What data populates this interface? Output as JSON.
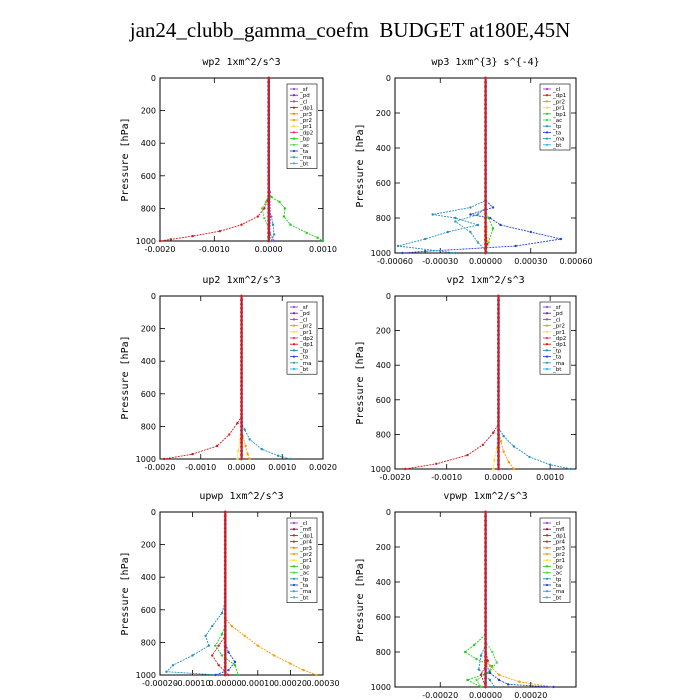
{
  "figure": {
    "title": "jan24_clubb_gamma_coefm  BUDGET at180E,45N"
  },
  "colors": {
    "sf": "#8c4fd0",
    "pd": "#7a1fa0",
    "cl": "#a040d8",
    "dp1": "#d01818",
    "dp2": "#ee3366",
    "pr2": "#ff9900",
    "pr3": "#e08a00",
    "pr1": "#ffdd33",
    "pr4": "#cc2a2a",
    "mfl": "#9a0a3a",
    "bp": "#22cc22",
    "bp1": "#22cc22",
    "ac": "#44dd44",
    "tp": "#2090c0",
    "ta": "#2244dd",
    "ma": "#3aa0a0",
    "bt": "#22bbee",
    "frame": "#000000",
    "legend_box": "#ffffff"
  },
  "chart_data": [
    {
      "id": "wp2",
      "type": "line",
      "title": "wp2  1xm^2/s^3",
      "ylabel": "Pressure [hPa]",
      "ylim": [
        1000,
        0
      ],
      "xlim": [
        -0.002,
        0.001
      ],
      "xticks": [
        -0.002,
        -0.001,
        0.0,
        0.001
      ],
      "xtick_labels": [
        "-0.0020",
        "-0.0010",
        "0.0000",
        "0.0010"
      ],
      "yticks": [
        0,
        200,
        400,
        600,
        800,
        1000
      ],
      "ytick_labels": [
        "0",
        "200",
        "400",
        "600",
        "800",
        "1000"
      ],
      "legend": [
        "_sf",
        "_pd",
        "_cl",
        "_dp1",
        "_pr3",
        "_pr2",
        "_pr1",
        "_dp2",
        "_bp",
        "_ac",
        "_ta",
        "_ma",
        "_bt"
      ],
      "series": [
        {
          "key": "dp1",
          "x": [
            0,
            0,
            -2e-05,
            -8e-05,
            -0.0002,
            -0.0005,
            -0.0009,
            -0.0014,
            -0.0018,
            -0.002
          ],
          "y": [
            0,
            700,
            750,
            800,
            850,
            900,
            940,
            970,
            990,
            1000
          ]
        },
        {
          "key": "bp",
          "x": [
            0,
            0,
            5e-05,
            0.0002,
            0.0003,
            0.00028,
            0.0004,
            0.0007,
            0.0009,
            0.001
          ],
          "y": [
            0,
            700,
            730,
            760,
            800,
            850,
            900,
            950,
            980,
            1000
          ]
        },
        {
          "key": "ac",
          "x": [
            0,
            0,
            -5e-05,
            -0.00012,
            -8e-05,
            0.0,
            5e-05
          ],
          "y": [
            0,
            720,
            760,
            800,
            860,
            920,
            1000
          ]
        },
        {
          "key": "tp",
          "x": [
            0,
            0,
            5e-05,
            8e-05,
            0.0001,
            5e-05
          ],
          "y": [
            0,
            800,
            850,
            900,
            960,
            1000
          ]
        },
        {
          "key": "cl",
          "x": [
            0,
            0,
            2e-05,
            3e-05,
            2e-05,
            0.0001
          ],
          "y": [
            0,
            500,
            700,
            850,
            950,
            1000
          ]
        },
        {
          "key": "pd",
          "x": [
            0,
            0,
            0,
            0
          ],
          "y": [
            0,
            400,
            800,
            1000
          ]
        }
      ]
    },
    {
      "id": "wp3",
      "type": "line",
      "title": "wp3  1xm^{3} s^{-4}",
      "ylabel": "Pressure [hPa]",
      "ylim": [
        1000,
        0
      ],
      "xlim": [
        -0.0006,
        0.0006
      ],
      "xticks": [
        -0.0006,
        -0.0003,
        0.0,
        0.0003,
        0.0006
      ],
      "xtick_labels": [
        "-0.00060",
        "-0.00030",
        "0.00000",
        "0.00030",
        "0.00060"
      ],
      "yticks": [
        0,
        200,
        400,
        600,
        800,
        1000
      ],
      "ytick_labels": [
        "0",
        "200",
        "400",
        "600",
        "800",
        "1000"
      ],
      "legend": [
        "_cl",
        "_dp1",
        "_pr2",
        "_pr1",
        "_bp1",
        "_ac",
        "_tp",
        "_ta",
        "_ma",
        "_bt"
      ],
      "series": [
        {
          "key": "ta",
          "x": [
            0,
            0,
            5e-05,
            -0.0001,
            3e-05,
            0.0001,
            0.0003,
            0.0005,
            0.0002,
            -0.0004,
            -0.00055
          ],
          "y": [
            0,
            700,
            740,
            780,
            800,
            840,
            880,
            920,
            960,
            990,
            1000
          ]
        },
        {
          "key": "tp",
          "x": [
            0,
            0,
            -0.0001,
            -0.00035,
            -0.0002,
            -5e-05,
            -0.00025,
            -0.0004,
            -0.00058,
            -0.0002
          ],
          "y": [
            0,
            700,
            740,
            780,
            800,
            840,
            880,
            920,
            960,
            1000
          ]
        },
        {
          "key": "ma",
          "x": [
            0,
            0,
            -5e-05,
            -0.0002,
            -0.0001,
            -5e-05,
            2e-05
          ],
          "y": [
            0,
            740,
            780,
            820,
            880,
            940,
            1000
          ]
        },
        {
          "key": "bp1",
          "x": [
            0,
            0,
            2e-05,
            5e-05,
            2e-05,
            0.0
          ],
          "y": [
            0,
            760,
            800,
            860,
            940,
            1000
          ]
        },
        {
          "key": "pr1",
          "x": [
            0,
            0,
            1e-05,
            2e-05,
            0.0
          ],
          "y": [
            0,
            780,
            850,
            930,
            1000
          ]
        },
        {
          "key": "dp1",
          "x": [
            0,
            0,
            0,
            1e-05,
            0
          ],
          "y": [
            0,
            400,
            800,
            950,
            1000
          ]
        }
      ]
    },
    {
      "id": "up2",
      "type": "line",
      "title": "up2  1xm^2/s^3",
      "ylabel": "Pressure [hPa]",
      "ylim": [
        1000,
        0
      ],
      "xlim": [
        -0.002,
        0.002
      ],
      "xticks": [
        -0.002,
        -0.001,
        0.0,
        0.001,
        0.002
      ],
      "xtick_labels": [
        "-0.0020",
        "-0.0010",
        "0.0000",
        "0.0010",
        "0.0020"
      ],
      "yticks": [
        0,
        200,
        400,
        600,
        800,
        1000
      ],
      "ytick_labels": [
        "0",
        "200",
        "400",
        "600",
        "800",
        "1000"
      ],
      "legend": [
        "_sf",
        "_pd",
        "_cl",
        "_pr2",
        "_pr1",
        "_dp2",
        "_dp1",
        "_tp",
        "_ta",
        "_ma",
        "_bt"
      ],
      "series": [
        {
          "key": "dp1",
          "x": [
            0,
            0,
            -0.0001,
            -0.0003,
            -0.0006,
            -0.0012,
            -0.0019
          ],
          "y": [
            0,
            740,
            780,
            850,
            920,
            970,
            1000
          ]
        },
        {
          "key": "tp",
          "x": [
            0,
            0,
            8e-05,
            0.0002,
            0.0005,
            0.0009,
            0.0012
          ],
          "y": [
            0,
            780,
            820,
            880,
            940,
            980,
            1000
          ]
        },
        {
          "key": "pr2",
          "x": [
            0,
            0,
            3e-05,
            0.0001,
            0.00015,
            0.0002
          ],
          "y": [
            0,
            800,
            860,
            920,
            970,
            1000
          ]
        },
        {
          "key": "pr1",
          "x": [
            0,
            0,
            -3e-05,
            -8e-05,
            -0.0001
          ],
          "y": [
            0,
            820,
            880,
            950,
            1000
          ]
        },
        {
          "key": "dp2",
          "x": [
            0,
            0,
            0,
            0
          ],
          "y": [
            0,
            400,
            800,
            1000
          ]
        }
      ]
    },
    {
      "id": "vp2",
      "type": "line",
      "title": "vp2  1xm^2/s^3",
      "ylabel": "Pressure [hPa]",
      "ylim": [
        1000,
        0
      ],
      "xlim": [
        -0.002,
        0.0015
      ],
      "xticks": [
        -0.002,
        -0.001,
        0.0,
        0.001
      ],
      "xtick_labels": [
        "-0.0020",
        "-0.0010",
        "0.0000",
        "0.0010"
      ],
      "yticks": [
        0,
        200,
        400,
        600,
        800,
        1000
      ],
      "ytick_labels": [
        "0",
        "200",
        "400",
        "600",
        "800",
        "1000"
      ],
      "legend": [
        "_sf",
        "_pd",
        "_cl",
        "_pr2",
        "_pr1",
        "_dp2",
        "_dp1",
        "_tp",
        "_ta",
        "_ma",
        "_bt"
      ],
      "series": [
        {
          "key": "dp1",
          "x": [
            0,
            0,
            -0.0001,
            -0.0003,
            -0.0006,
            -0.0012,
            -0.0018
          ],
          "y": [
            0,
            740,
            790,
            860,
            920,
            970,
            1000
          ]
        },
        {
          "key": "tp",
          "x": [
            0,
            0,
            0.0001,
            0.0003,
            0.0006,
            0.001,
            0.0014
          ],
          "y": [
            0,
            760,
            810,
            870,
            930,
            975,
            1000
          ]
        },
        {
          "key": "pr2",
          "x": [
            0,
            0,
            5e-05,
            0.0001,
            0.0002,
            0.0003
          ],
          "y": [
            0,
            780,
            840,
            900,
            960,
            1000
          ]
        },
        {
          "key": "pr1",
          "x": [
            0,
            0,
            -3e-05,
            -8e-05,
            -0.0001
          ],
          "y": [
            0,
            820,
            880,
            950,
            1000
          ]
        },
        {
          "key": "dp2",
          "x": [
            0,
            0,
            0,
            0
          ],
          "y": [
            0,
            400,
            800,
            1000
          ]
        }
      ]
    },
    {
      "id": "upwp",
      "type": "line",
      "title": "upwp  1xm^2/s^3",
      "ylabel": "Pressure [hPa]",
      "ylim": [
        1000,
        0
      ],
      "xlim": [
        -0.0002,
        0.0003
      ],
      "xticks": [
        -0.0002,
        -0.0001,
        0.0,
        0.0001,
        0.0002,
        0.0003
      ],
      "xtick_labels": [
        "-0.00020",
        "-0.00010",
        "0.00000",
        "0.00010",
        "0.00020",
        "0.00030"
      ],
      "yticks": [
        0,
        200,
        400,
        600,
        800,
        1000
      ],
      "ytick_labels": [
        "0",
        "200",
        "400",
        "600",
        "800",
        "1000"
      ],
      "legend": [
        "_cl",
        "_mfl",
        "_dp1",
        "_pr4",
        "_pr3",
        "_pr2",
        "_pr1",
        "_bp",
        "_ac",
        "_tp",
        "_ta",
        "_ma",
        "_bt"
      ],
      "series": [
        {
          "key": "tp",
          "x": [
            0,
            0,
            -1e-05,
            -4e-05,
            -6e-05,
            -5e-05,
            -0.0001,
            -0.00016,
            -0.00018,
            -2e-05
          ],
          "y": [
            0,
            550,
            620,
            700,
            760,
            820,
            880,
            940,
            980,
            1000
          ]
        },
        {
          "key": "pr2",
          "x": [
            0,
            0,
            2e-05,
            6e-05,
            0.0001,
            0.00015,
            0.0002,
            0.00024,
            0.00028
          ],
          "y": [
            0,
            650,
            700,
            760,
            820,
            880,
            930,
            970,
            1000
          ]
        },
        {
          "key": "bp",
          "x": [
            0,
            0,
            -1e-05,
            -3e-05,
            -1e-05,
            3e-05,
            4e-05
          ],
          "y": [
            0,
            700,
            750,
            820,
            880,
            940,
            1000
          ]
        },
        {
          "key": "pr4",
          "x": [
            0,
            0,
            -2e-05,
            -4e-05,
            -2e-05,
            1e-05
          ],
          "y": [
            0,
            760,
            820,
            880,
            940,
            1000
          ]
        },
        {
          "key": "ta",
          "x": [
            0,
            0,
            1e-05,
            3e-05,
            1e-05,
            -3e-05
          ],
          "y": [
            0,
            800,
            860,
            920,
            970,
            1000
          ]
        },
        {
          "key": "dp1",
          "x": [
            0,
            0,
            0,
            0
          ],
          "y": [
            0,
            400,
            800,
            1000
          ]
        }
      ]
    },
    {
      "id": "vpwp",
      "type": "line",
      "title": "vpwp  1xm^2/s^3",
      "ylabel": "Pressure [hPa]",
      "ylim": [
        1000,
        0
      ],
      "xlim": [
        -0.0004,
        0.0004
      ],
      "xticks": [
        -0.0002,
        0.0,
        0.0002
      ],
      "xtick_labels": [
        "-0.00020",
        "0.00000",
        "0.00020"
      ],
      "yticks": [
        0,
        200,
        400,
        600,
        800,
        1000
      ],
      "ytick_labels": [
        "0",
        "200",
        "400",
        "600",
        "800",
        "1000"
      ],
      "legend": [
        "_cl",
        "_mfl",
        "_dp1",
        "_pr4",
        "_pr3",
        "_pr2",
        "_pr1",
        "_bp",
        "_ac",
        "_tp",
        "_ta",
        "_ma",
        "_bt"
      ],
      "series": [
        {
          "key": "bp",
          "x": [
            0,
            0,
            -5e-05,
            -9e-05,
            -4e-05,
            3e-05,
            1e-05,
            -8e-05,
            -2e-05
          ],
          "y": [
            0,
            700,
            760,
            800,
            840,
            880,
            920,
            960,
            1000
          ]
        },
        {
          "key": "ac",
          "x": [
            0,
            0,
            3e-05,
            5e-05,
            2e-05,
            -4e-05,
            -2e-05
          ],
          "y": [
            0,
            740,
            800,
            860,
            910,
            960,
            1000
          ]
        },
        {
          "key": "pr2",
          "x": [
            0,
            0,
            2e-05,
            6e-05,
            0.00015,
            0.0003
          ],
          "y": [
            0,
            820,
            880,
            930,
            970,
            1000
          ]
        },
        {
          "key": "tp",
          "x": [
            0,
            0,
            -2e-05,
            -3e-05,
            2e-05,
            4e-05
          ],
          "y": [
            0,
            760,
            820,
            900,
            960,
            1000
          ]
        },
        {
          "key": "ta",
          "x": [
            0,
            0,
            2e-05,
            6e-05,
            0.0001,
            0.0003
          ],
          "y": [
            0,
            860,
            920,
            960,
            985,
            1000
          ]
        },
        {
          "key": "pr4",
          "x": [
            0,
            0,
            1e-05,
            -2e-05,
            0.0
          ],
          "y": [
            0,
            780,
            850,
            930,
            1000
          ]
        },
        {
          "key": "dp1",
          "x": [
            0,
            0,
            0,
            0
          ],
          "y": [
            0,
            400,
            800,
            1000
          ]
        }
      ]
    }
  ]
}
